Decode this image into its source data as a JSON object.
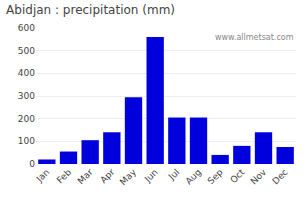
{
  "chart_data": {
    "type": "bar",
    "title": "Abidjan : precipitation (mm)",
    "categories": [
      "Jan",
      "Feb",
      "Mar",
      "Apr",
      "May",
      "Jun",
      "Jul",
      "Aug",
      "Sep",
      "Oct",
      "Nov",
      "Dec"
    ],
    "values": [
      20,
      55,
      105,
      140,
      295,
      560,
      205,
      205,
      40,
      80,
      140,
      75
    ],
    "color": "#0000dd",
    "ylim": [
      0,
      600
    ],
    "yticks": [
      0,
      100,
      200,
      300,
      400,
      500,
      600
    ],
    "grid": true,
    "annotations": [
      "www.allmetsat.com"
    ]
  }
}
